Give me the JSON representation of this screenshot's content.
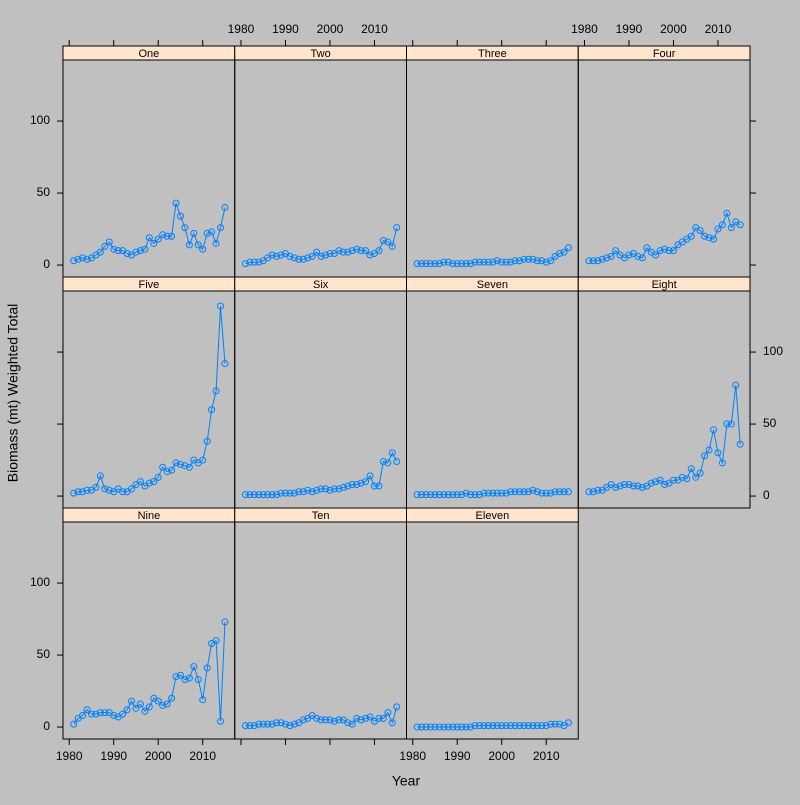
{
  "chart_data": {
    "type": "line",
    "x_label": "Year",
    "y_label": "Biomass (mt) Weighted Total",
    "x": [
      1981,
      1982,
      1983,
      1984,
      1985,
      1986,
      1987,
      1988,
      1989,
      1990,
      1991,
      1992,
      1993,
      1994,
      1995,
      1996,
      1997,
      1998,
      1999,
      2000,
      2001,
      2002,
      2003,
      2004,
      2005,
      2006,
      2007,
      2008,
      2009,
      2010,
      2011,
      2012,
      2013,
      2014,
      2015
    ],
    "xlim": [
      1978.6,
      2017.2
    ],
    "ylim": [
      -8.3,
      142.4
    ],
    "xticks": [
      1980,
      1990,
      2000,
      2010
    ],
    "yticks": [
      0,
      50,
      100
    ],
    "series": [
      {
        "name": "One",
        "color": "#0080ff",
        "values": [
          3,
          4,
          5,
          4,
          5,
          7,
          9,
          13,
          16,
          11,
          10,
          10,
          8,
          7,
          9,
          10,
          11,
          19,
          15,
          18,
          21,
          20,
          20,
          43,
          34,
          26,
          14,
          22,
          14,
          11,
          22,
          23,
          15,
          26,
          40
        ]
      },
      {
        "name": "Two",
        "color": "#0080ff",
        "values": [
          1,
          2,
          2,
          2,
          3,
          5,
          7,
          6,
          7,
          8,
          6,
          5,
          4,
          4,
          5,
          6,
          9,
          6,
          7,
          8,
          8,
          10,
          9,
          9,
          10,
          11,
          10,
          10,
          7,
          8,
          10,
          17,
          16,
          13,
          26
        ]
      },
      {
        "name": "Three",
        "color": "#0080ff",
        "values": [
          1,
          1,
          1,
          1,
          1,
          1,
          2,
          2,
          1,
          1,
          1,
          1,
          1,
          2,
          2,
          2,
          2,
          2,
          3,
          2,
          2,
          2,
          3,
          3,
          4,
          4,
          4,
          3,
          3,
          2,
          3,
          6,
          8,
          9,
          12
        ]
      },
      {
        "name": "Four",
        "color": "#0080ff",
        "values": [
          3,
          3,
          3,
          4,
          5,
          6,
          10,
          7,
          5,
          7,
          8,
          6,
          5,
          12,
          9,
          7,
          10,
          11,
          10,
          10,
          14,
          16,
          18,
          20,
          26,
          24,
          20,
          19,
          18,
          25,
          28,
          36,
          26,
          30,
          28
        ]
      },
      {
        "name": "Five",
        "color": "#0080ff",
        "values": [
          2,
          3,
          3,
          4,
          4,
          6,
          14,
          5,
          4,
          3,
          5,
          3,
          3,
          5,
          8,
          10,
          7,
          9,
          10,
          13,
          20,
          17,
          18,
          23,
          22,
          21,
          20,
          25,
          23,
          25,
          38,
          60,
          73,
          132,
          92
        ]
      },
      {
        "name": "Six",
        "color": "#0080ff",
        "values": [
          1,
          1,
          1,
          1,
          1,
          1,
          1,
          1,
          2,
          2,
          2,
          2,
          3,
          3,
          4,
          3,
          4,
          5,
          5,
          4,
          5,
          5,
          6,
          7,
          8,
          8,
          9,
          10,
          14,
          7,
          7,
          24,
          23,
          30,
          24
        ]
      },
      {
        "name": "Seven",
        "color": "#0080ff",
        "values": [
          1,
          1,
          1,
          1,
          1,
          1,
          1,
          1,
          1,
          1,
          1,
          2,
          1,
          1,
          1,
          2,
          2,
          2,
          2,
          2,
          2,
          3,
          3,
          3,
          3,
          3,
          4,
          3,
          2,
          2,
          2,
          3,
          3,
          3,
          3
        ]
      },
      {
        "name": "Eight",
        "color": "#0080ff",
        "values": [
          3,
          3,
          4,
          4,
          6,
          8,
          6,
          7,
          8,
          8,
          7,
          7,
          6,
          7,
          9,
          10,
          11,
          8,
          9,
          11,
          11,
          13,
          12,
          19,
          13,
          16,
          28,
          32,
          46,
          30,
          23,
          50,
          50,
          77,
          36
        ]
      },
      {
        "name": "Nine",
        "color": "#0080ff",
        "values": [
          2,
          6,
          8,
          12,
          9,
          9,
          10,
          10,
          10,
          8,
          7,
          9,
          12,
          18,
          13,
          16,
          11,
          14,
          20,
          18,
          15,
          16,
          20,
          35,
          36,
          33,
          34,
          42,
          33,
          19,
          41,
          58,
          60,
          4,
          73
        ]
      },
      {
        "name": "Ten",
        "color": "#0080ff",
        "values": [
          1,
          1,
          1,
          2,
          2,
          2,
          2,
          3,
          3,
          2,
          1,
          2,
          3,
          5,
          6,
          8,
          6,
          5,
          5,
          5,
          4,
          5,
          5,
          3,
          2,
          6,
          5,
          6,
          7,
          4,
          6,
          6,
          10,
          3,
          14
        ]
      },
      {
        "name": "Eleven",
        "color": "#0080ff",
        "values": [
          0,
          0,
          0,
          0,
          0,
          0,
          0,
          0,
          0,
          0,
          0,
          0,
          0,
          1,
          1,
          1,
          1,
          1,
          1,
          1,
          1,
          1,
          1,
          1,
          1,
          1,
          1,
          1,
          1,
          1,
          2,
          2,
          2,
          1,
          3
        ]
      }
    ]
  }
}
